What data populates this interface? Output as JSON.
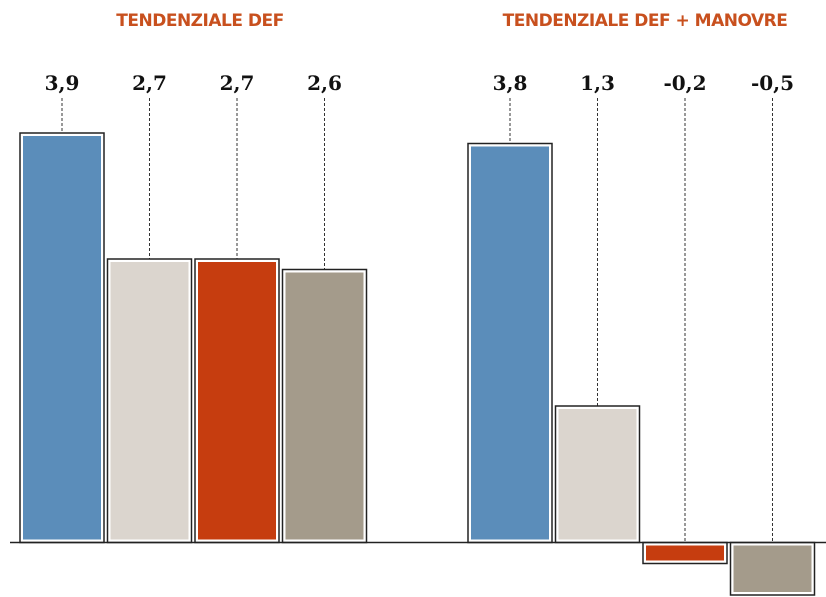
{
  "chart_data": [
    {
      "type": "bar",
      "title": "TENDENZIALE DEF",
      "values": [
        3.9,
        2.7,
        2.7,
        2.6
      ],
      "value_labels": [
        "3,9",
        "2,7",
        "2,7",
        "2,6"
      ],
      "colors": [
        "#5b8dba",
        "#dbd5ce",
        "#c63d0f",
        "#a49b8b"
      ],
      "ylim": [
        -0.5,
        3.9
      ]
    },
    {
      "type": "bar",
      "title": "TENDENZIALE DEF + MANOVRE",
      "values": [
        3.8,
        1.3,
        -0.2,
        -0.5
      ],
      "value_labels": [
        "3,8",
        "1,3",
        "-0,2",
        "-0,5"
      ],
      "colors": [
        "#5b8dba",
        "#dbd5ce",
        "#c63d0f",
        "#a49b8b"
      ],
      "ylim": [
        -0.5,
        3.9
      ]
    }
  ]
}
